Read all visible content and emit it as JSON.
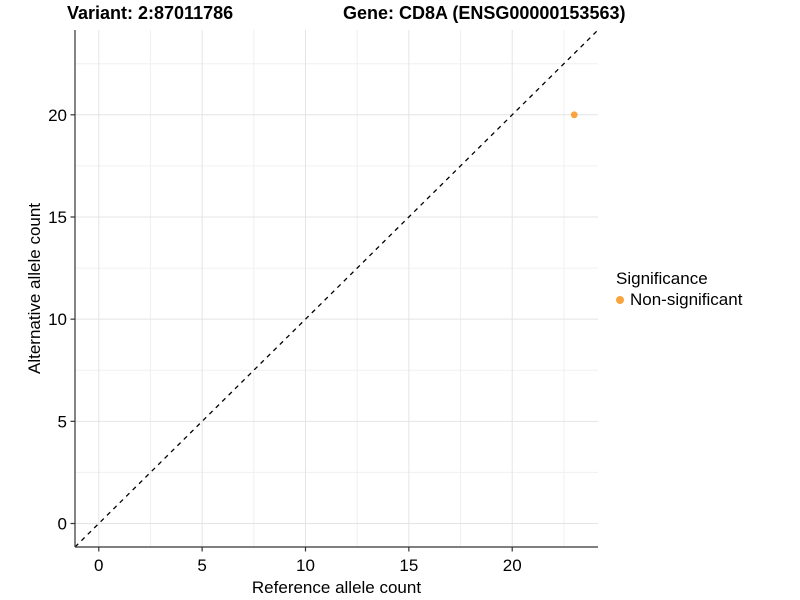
{
  "header": {
    "variant_title": "Variant: 2:87011786",
    "gene_title": "Gene: CD8A (ENSG00000153563)"
  },
  "chart_data": {
    "type": "scatter",
    "title_left": "Variant: 2:87011786",
    "title_right": "Gene: CD8A (ENSG00000153563)",
    "xlabel": "Reference allele count",
    "ylabel": "Alternative allele count",
    "xlim": [
      -1.15,
      24.15
    ],
    "ylim": [
      -1.15,
      24.15
    ],
    "x_ticks": [
      0,
      5,
      10,
      15,
      20
    ],
    "y_ticks": [
      0,
      5,
      10,
      15,
      20
    ],
    "x_minor_ticks": [
      2.5,
      7.5,
      12.5,
      17.5,
      22.5
    ],
    "y_minor_ticks": [
      2.5,
      7.5,
      12.5,
      17.5,
      22.5
    ],
    "grid": true,
    "identity_line": {
      "type": "y=x",
      "style": "dashed",
      "color": "#000000"
    },
    "series": [
      {
        "name": "Non-significant",
        "color": "#F9A43F",
        "points": [
          {
            "x": 23,
            "y": 20
          }
        ]
      }
    ],
    "legend": {
      "title": "Significance",
      "position": "right",
      "items": [
        {
          "label": "Non-significant",
          "color": "#F9A43F"
        }
      ]
    },
    "colors": {
      "axis_line": "#333333",
      "grid_major": "#e4e4e4",
      "grid_minor": "#f0f0f0",
      "text": "#000000"
    }
  }
}
